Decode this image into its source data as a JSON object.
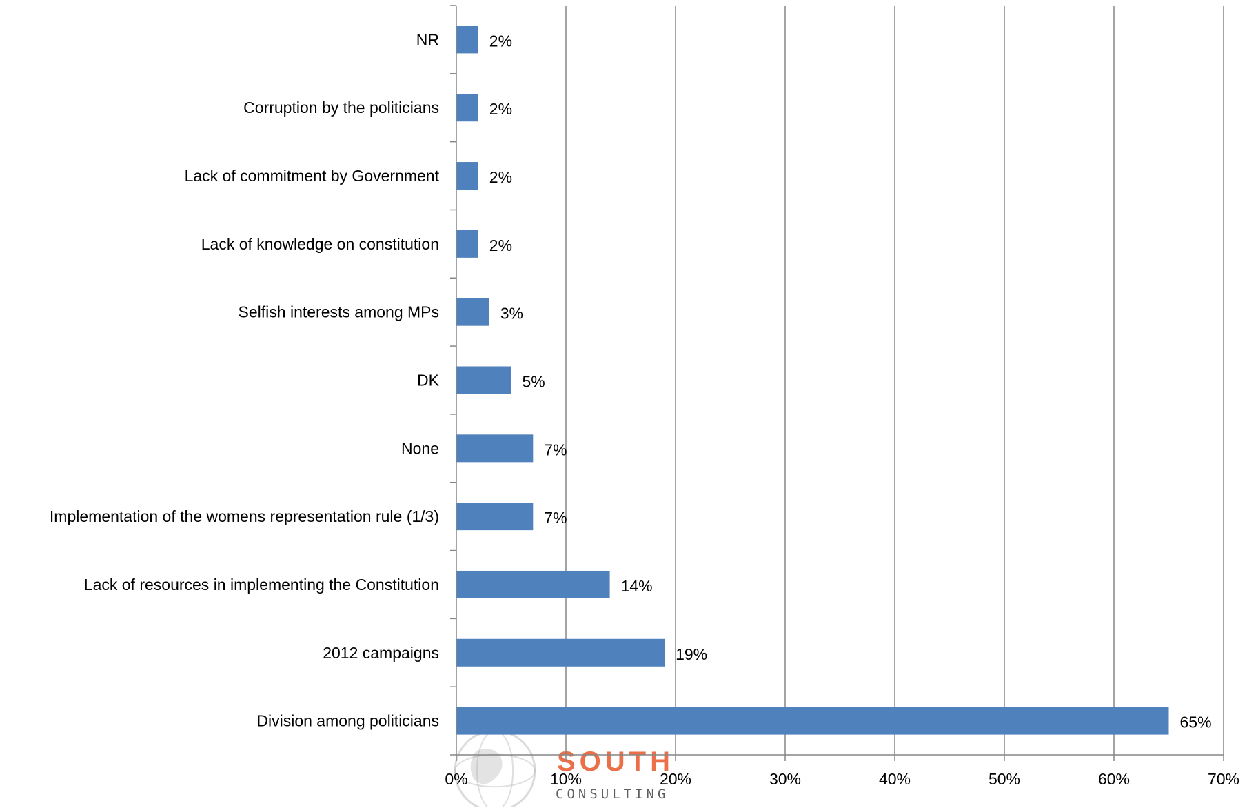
{
  "chart_data": {
    "type": "bar",
    "orientation": "horizontal",
    "categories": [
      "NR",
      "Corruption by the politicians",
      "Lack of commitment by Government",
      "Lack of knowledge on constitution",
      "Selfish interests among MPs",
      "DK",
      "None",
      "Implementation of the womens representation rule (1/3)",
      "Lack of resources in implementing the Constitution",
      "2012 campaigns",
      "Division among politicians"
    ],
    "values": [
      2,
      2,
      2,
      2,
      3,
      5,
      7,
      7,
      14,
      19,
      65
    ],
    "data_labels": [
      "2%",
      "2%",
      "2%",
      "2%",
      "3%",
      "5%",
      "7%",
      "7%",
      "14%",
      "19%",
      "65%"
    ],
    "xlim": [
      0,
      70
    ],
    "x_ticks": [
      0,
      10,
      20,
      30,
      40,
      50,
      60,
      70
    ],
    "x_tick_labels": [
      "0%",
      "10%",
      "20%",
      "30%",
      "40%",
      "50%",
      "60%",
      "70%"
    ],
    "grid": "vertical",
    "legend": "none",
    "title": "",
    "xlabel": "",
    "ylabel": "",
    "bar_color": "#4f81bd",
    "grid_color": "#868686",
    "axis_color": "#868686"
  },
  "watermark": {
    "brand_main": "SOUTH",
    "brand_sub": "CONSULTING",
    "brand_color": "#e8572a",
    "globe_color": "#b0b0b0"
  }
}
